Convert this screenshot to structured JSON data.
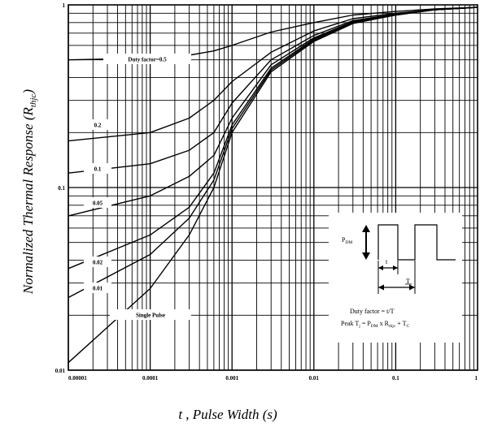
{
  "chart_data": {
    "type": "line",
    "title": "",
    "xlabel": "t , Pulse Width (s)",
    "ylabel": "Normalized Thermal Response (R",
    "ylabel_sub": "thjc",
    "ylabel_close": ")",
    "x_scale": "log",
    "y_scale": "log",
    "xlim": [
      1e-05,
      1
    ],
    "ylim": [
      0.01,
      1
    ],
    "grid": true,
    "x_ticks": [
      "0.00001",
      "0.0001",
      "0.001",
      "0.01",
      "0.1",
      "1"
    ],
    "y_ticks": [
      "1",
      "0.1",
      "0.01"
    ],
    "series": [
      {
        "name": "Duty factor=0.5",
        "x": [
          1e-05,
          0.0001,
          0.0003,
          0.0006,
          0.001,
          0.003,
          0.01,
          0.03,
          0.1,
          0.3,
          1
        ],
        "y": [
          0.5,
          0.51,
          0.53,
          0.56,
          0.6,
          0.71,
          0.8,
          0.88,
          0.92,
          0.95,
          0.97
        ]
      },
      {
        "name": "0.2",
        "x": [
          1e-05,
          0.0001,
          0.0003,
          0.0006,
          0.001,
          0.003,
          0.01,
          0.03,
          0.1,
          0.3,
          1
        ],
        "y": [
          0.18,
          0.2,
          0.24,
          0.3,
          0.38,
          0.55,
          0.72,
          0.84,
          0.9,
          0.94,
          0.97
        ]
      },
      {
        "name": "0.1",
        "x": [
          1e-05,
          0.0001,
          0.0003,
          0.0006,
          0.001,
          0.003,
          0.01,
          0.03,
          0.1,
          0.3,
          1
        ],
        "y": [
          0.12,
          0.135,
          0.16,
          0.2,
          0.29,
          0.5,
          0.68,
          0.82,
          0.89,
          0.94,
          0.97
        ]
      },
      {
        "name": "0.05",
        "x": [
          1e-05,
          0.0001,
          0.0003,
          0.0006,
          0.001,
          0.003,
          0.01,
          0.03,
          0.1,
          0.3,
          1
        ],
        "y": [
          0.07,
          0.09,
          0.115,
          0.15,
          0.24,
          0.47,
          0.66,
          0.81,
          0.89,
          0.94,
          0.97
        ]
      },
      {
        "name": "0.02",
        "x": [
          1e-05,
          0.0001,
          0.0003,
          0.0006,
          0.001,
          0.003,
          0.01,
          0.03,
          0.1,
          0.3,
          1
        ],
        "y": [
          0.036,
          0.055,
          0.078,
          0.12,
          0.22,
          0.45,
          0.65,
          0.8,
          0.88,
          0.94,
          0.97
        ]
      },
      {
        "name": "0.01",
        "x": [
          1e-05,
          0.0001,
          0.0003,
          0.0006,
          0.001,
          0.003,
          0.01,
          0.03,
          0.1,
          0.3,
          1
        ],
        "y": [
          0.025,
          0.043,
          0.068,
          0.11,
          0.21,
          0.44,
          0.64,
          0.8,
          0.88,
          0.94,
          0.97
        ]
      },
      {
        "name": "Single Pulse",
        "x": [
          1e-05,
          0.0001,
          0.0003,
          0.0006,
          0.001,
          0.003,
          0.01,
          0.03,
          0.1,
          0.3,
          1
        ],
        "y": [
          0.011,
          0.028,
          0.055,
          0.1,
          0.2,
          0.43,
          0.63,
          0.79,
          0.88,
          0.94,
          0.97
        ]
      }
    ],
    "curve_labels": [
      "Duty factor=0.5",
      "0.2",
      "0.1",
      "0.05",
      "0.02",
      "0.01",
      "Single Pulse"
    ],
    "inset": {
      "pdm": "P",
      "pdm_sub": "DM",
      "t1": "t",
      "T": "T",
      "line1": "Duty factor = t/T",
      "line2_a": "Peak T",
      "line2_sub1": "j",
      "line2_b": " = P",
      "line2_sub2": "DM",
      "line2_c": " x R",
      "line2_sub3": "thjc",
      "line2_d": " + T",
      "line2_sub4": "C"
    }
  }
}
